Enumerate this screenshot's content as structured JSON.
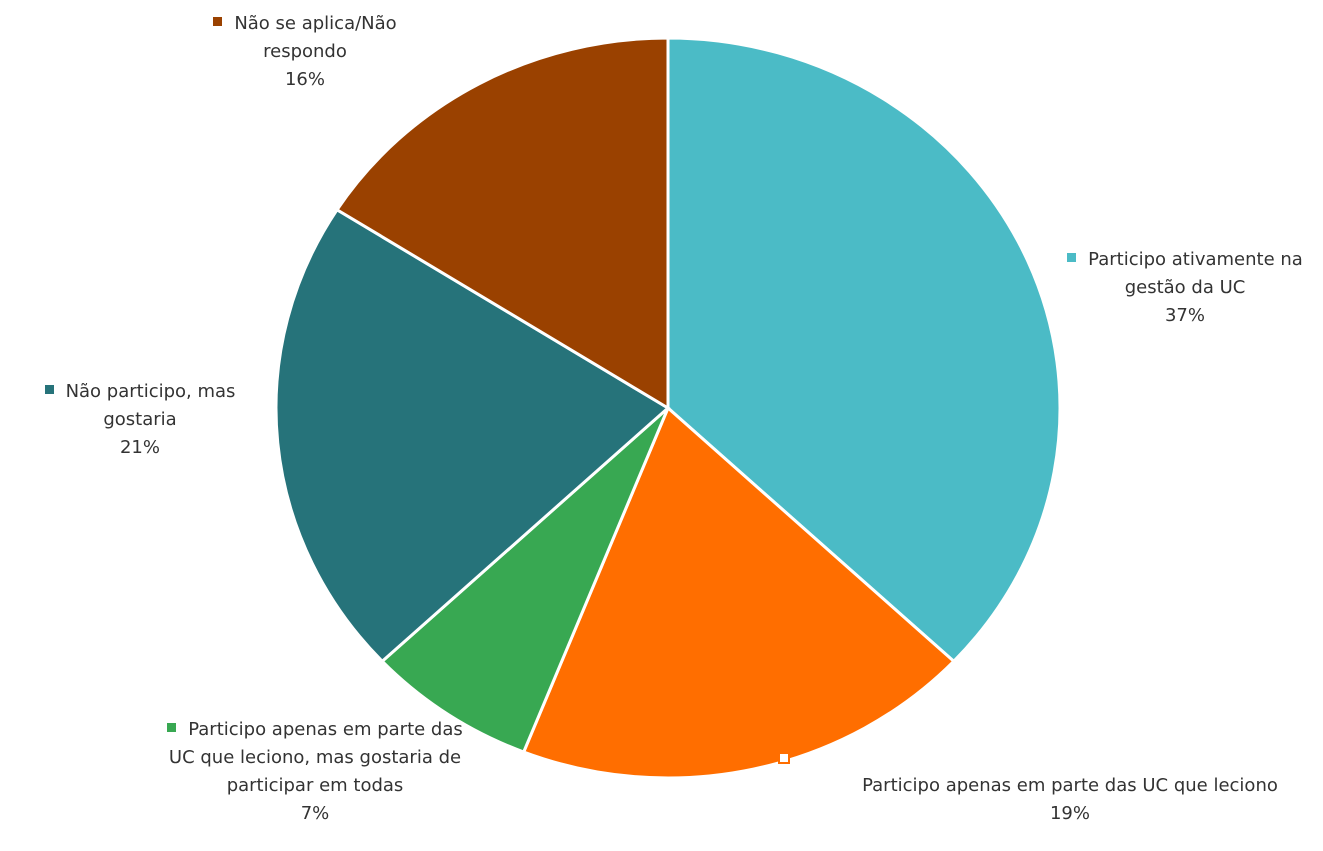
{
  "chart_data": {
    "type": "pie",
    "categories": [
      "Participo ativamente na gestão da UC",
      "Participo apenas em parte das UC que leciono",
      "Participo apenas em parte das UC que leciono, mas gostaria de participar em todas",
      "Não participo, mas gostaria",
      "Não se aplica/Não respondo"
    ],
    "values": [
      37,
      19,
      7,
      21,
      16
    ],
    "value_labels": [
      "37%",
      "19%",
      "7%",
      "21%",
      "16%"
    ],
    "colors": [
      "#4bbbc6",
      "#ff6e00",
      "#38a852",
      "#26737a",
      "#9a4100"
    ]
  }
}
